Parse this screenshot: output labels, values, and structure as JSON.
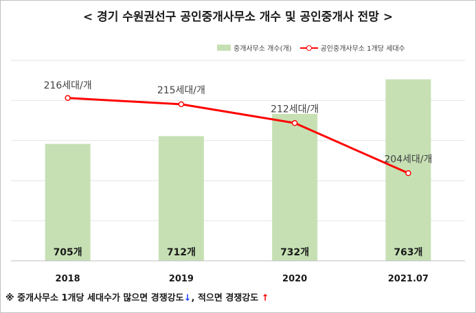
{
  "chart_data": {
    "type": "bar+line",
    "title": "< 경기 수원권선구 공인중개사무소 개수 및 공인중개사 전망 >",
    "categories": [
      "2018",
      "2019",
      "2020",
      "2021.07"
    ],
    "series": [
      {
        "name": "중개사무소 개수(개)",
        "type": "bar",
        "values": [
          705,
          712,
          732,
          763
        ],
        "labels": [
          "705개",
          "712개",
          "732개",
          "763개"
        ],
        "color": "#c6e0b4"
      },
      {
        "name": "공인중개사무소 1개당 세대수",
        "type": "line",
        "values": [
          216,
          215,
          212,
          204
        ],
        "labels": [
          "216세대/개",
          "215세대/개",
          "212세대/개",
          "204세대/개"
        ],
        "color": "#ff0000"
      }
    ],
    "legend_position": "top-right",
    "grid": true
  },
  "footnote": {
    "text1": "※ 중개사무소 1개당 세대수가 많으면 경쟁강도",
    "arrow1": "↓",
    "text2": ", 적으면 경쟁강도 ",
    "arrow2": "↑"
  }
}
